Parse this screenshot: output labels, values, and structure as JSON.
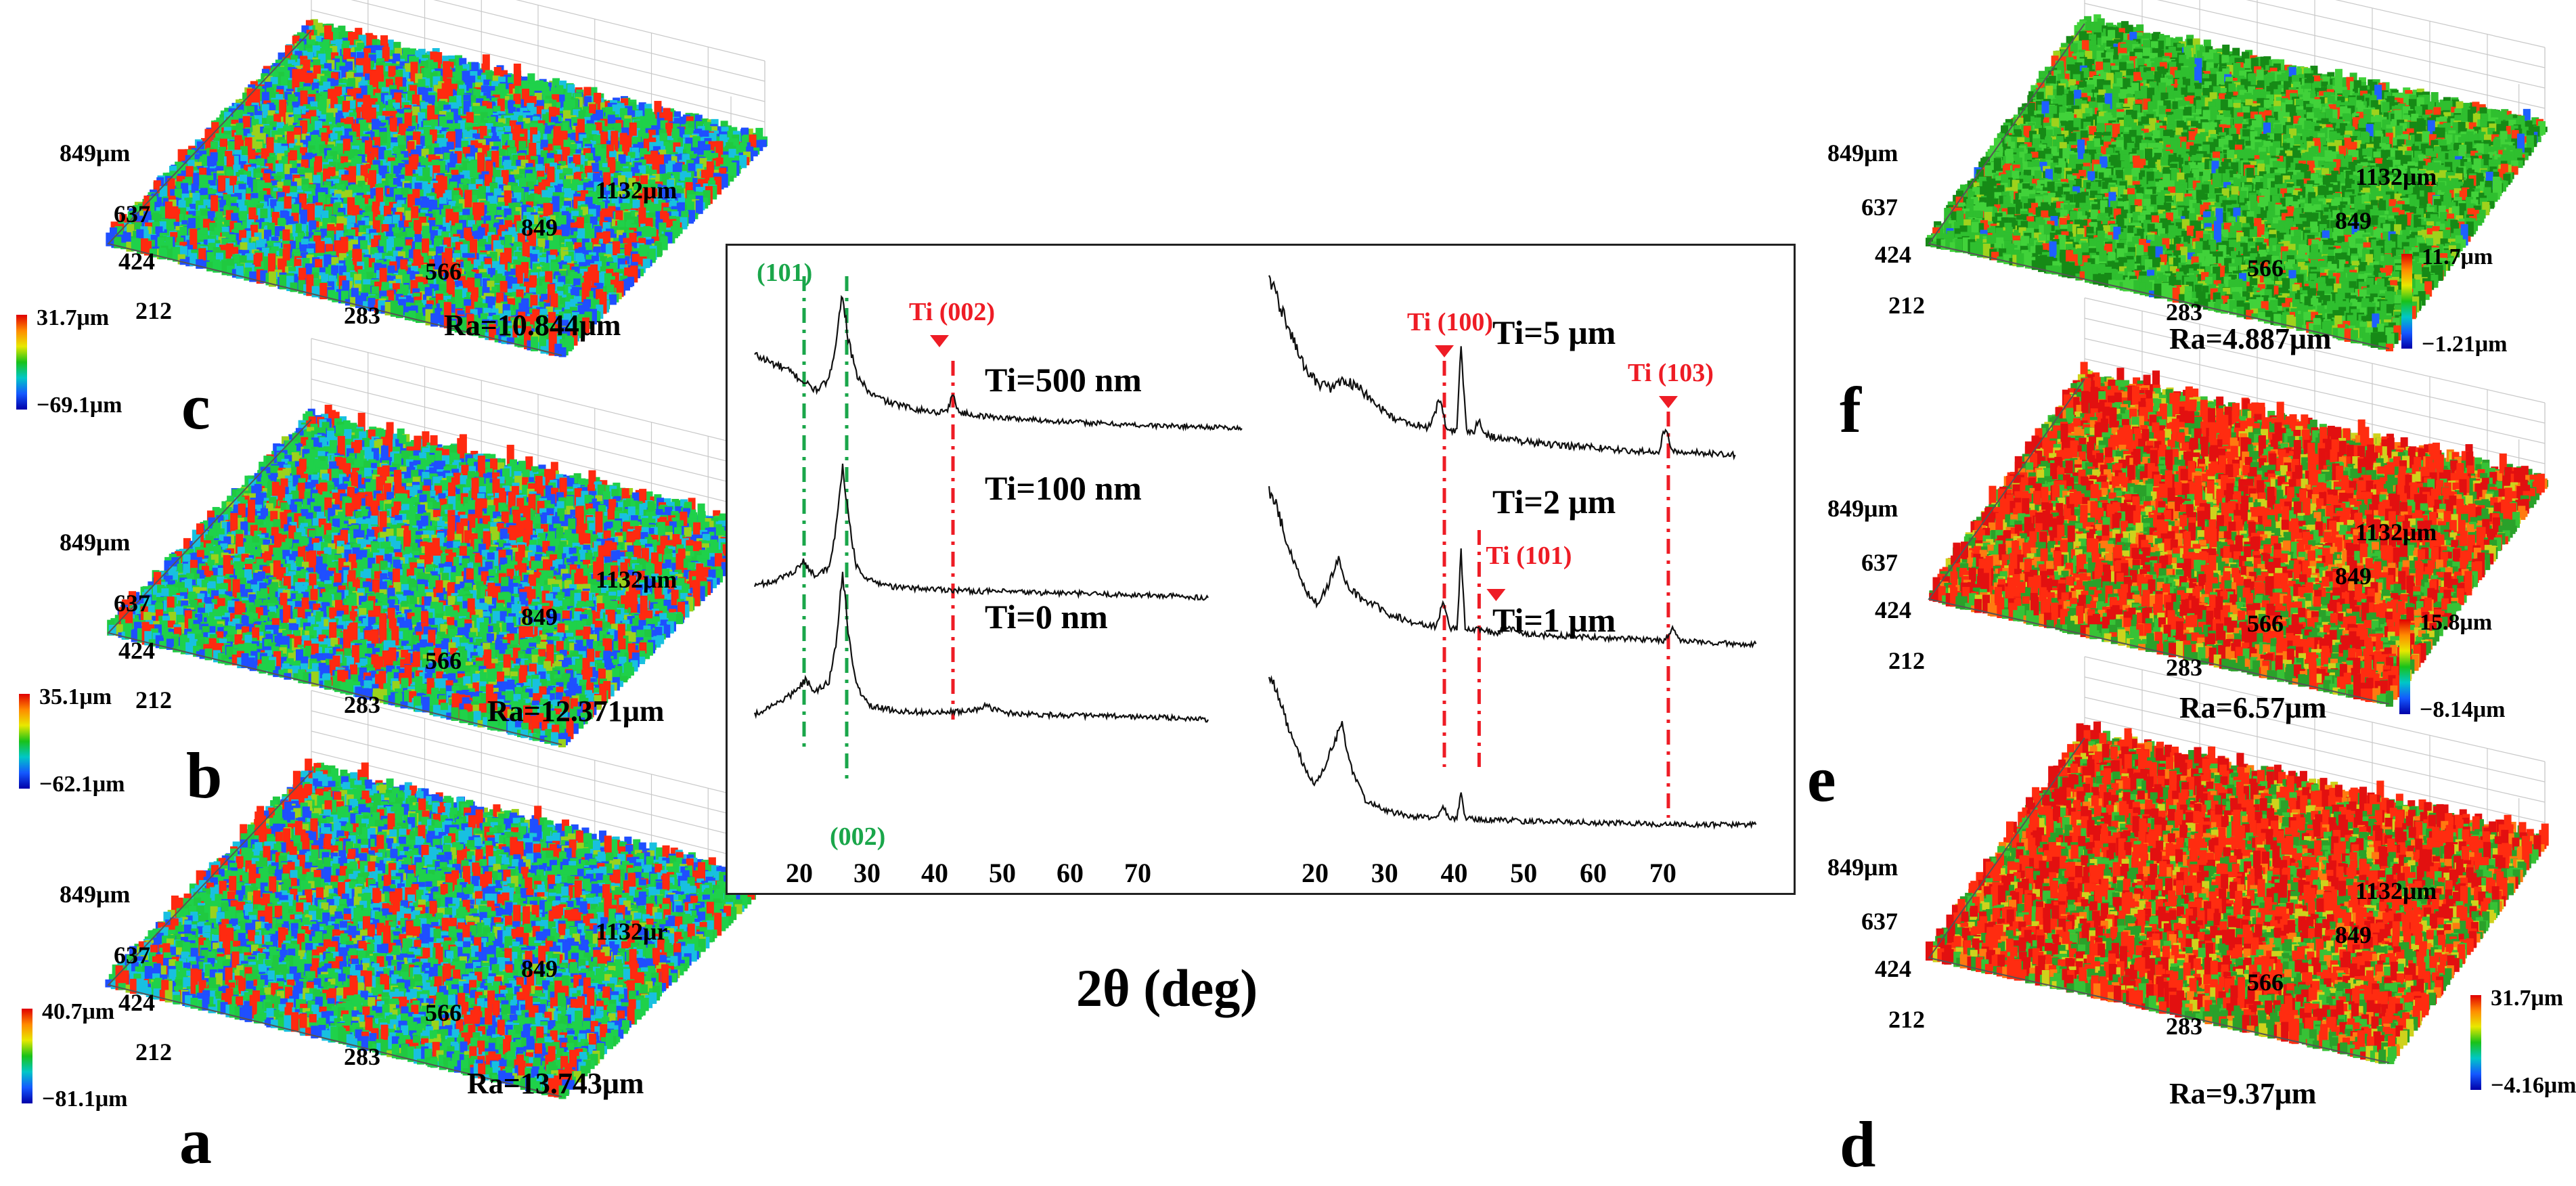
{
  "figure": {
    "xrd_xlabel": "2θ (deg)",
    "xrd_ticks": [
      "20",
      "30",
      "40",
      "50",
      "60",
      "70"
    ]
  },
  "colors": {
    "green": "#1aa64a",
    "red": "#ee1c25",
    "spectrum": [
      "#e00000",
      "#ff8a00",
      "#e8e800",
      "#19c219",
      "#00c7c7",
      "#1458ff",
      "#0000a8"
    ]
  },
  "panels": [
    {
      "id": "a",
      "letter": "a",
      "ra": "Ra=13.743μm",
      "cb_max": "40.7μm",
      "cb_min": "−81.1μm",
      "theme": "blue-green",
      "y_ticks": [
        "849μm",
        "637",
        "424",
        "212"
      ],
      "x_ticks": [
        "283",
        "566",
        "849",
        "1132μr"
      ]
    },
    {
      "id": "b",
      "letter": "b",
      "ra": "Ra=12.371μm",
      "cb_max": "35.1μm",
      "cb_min": "−62.1μm",
      "theme": "blue-green",
      "y_ticks": [
        "849μm",
        "637",
        "424",
        "212"
      ],
      "x_ticks": [
        "283",
        "566",
        "849",
        "1132μm"
      ]
    },
    {
      "id": "c",
      "letter": "c",
      "ra": "Ra=10.844μm",
      "cb_max": "31.7μm",
      "cb_min": "−69.1μm",
      "theme": "blue-green",
      "y_ticks": [
        "849μm",
        "637",
        "424",
        "212"
      ],
      "x_ticks": [
        "283",
        "566",
        "849",
        "1132μm"
      ]
    },
    {
      "id": "d",
      "letter": "d",
      "ra": "Ra=9.37μm",
      "cb_max": "31.7μm",
      "cb_min": "−4.16μm",
      "theme": "red-green",
      "y_ticks": [
        "849μm",
        "637",
        "424",
        "212"
      ],
      "x_ticks": [
        "283",
        "566",
        "849",
        "1132μm"
      ]
    },
    {
      "id": "e",
      "letter": "e",
      "ra": "Ra=6.57μm",
      "cb_max": "15.8μm",
      "cb_min": "−8.14μm",
      "theme": "red-green",
      "y_ticks": [
        "849μm",
        "637",
        "424",
        "212"
      ],
      "x_ticks": [
        "283",
        "566",
        "849",
        "1132μm"
      ]
    },
    {
      "id": "f",
      "letter": "f",
      "ra": "Ra=4.887μm",
      "cb_max": "11.7μm",
      "cb_min": "−1.21μm",
      "theme": "green",
      "y_ticks": [
        "849μm",
        "637",
        "424",
        "212"
      ],
      "x_ticks": [
        "283",
        "566",
        "849",
        "1132μm"
      ]
    }
  ],
  "chart_data": {
    "type": "line",
    "title": "",
    "xlabel": "2θ (deg)",
    "ylabel": "",
    "xlim": [
      13,
      85
    ],
    "x_ticks": [
      20,
      30,
      40,
      50,
      60,
      70
    ],
    "subplots": [
      {
        "name": "left",
        "series": [
          {
            "name": "Ti=500 nm",
            "label": "Ti=500 nm",
            "x": [
              13,
              16,
              18,
              20,
              22,
              24,
              25,
              26,
              26.8,
              28,
              30,
              33,
              37,
              40,
              41.5,
              42.3,
              43.2,
              46,
              52,
              60,
              70,
              80,
              85
            ],
            "y": [
              0.46,
              0.4,
              0.36,
              0.3,
              0.24,
              0.3,
              0.55,
              0.85,
              0.56,
              0.34,
              0.22,
              0.16,
              0.12,
              0.1,
              0.12,
              0.21,
              0.1,
              0.08,
              0.06,
              0.04,
              0.02,
              0.01,
              0.0
            ]
          },
          {
            "name": "Ti=100 nm",
            "label": "Ti=100 nm",
            "x": [
              13,
              16,
              19,
              20.2,
              22,
              24,
              25,
              26,
              26.8,
              28,
              30,
              34,
              40,
              45,
              55,
              65,
              75,
              80
            ],
            "y": [
              0.07,
              0.1,
              0.16,
              0.21,
              0.13,
              0.17,
              0.4,
              0.78,
              0.48,
              0.18,
              0.1,
              0.06,
              0.05,
              0.04,
              0.03,
              0.02,
              0.01,
              0.0
            ]
          },
          {
            "name": "Ti=0 nm",
            "label": "Ti=0 nm",
            "x": [
              13,
              16,
              19,
              20.5,
              22,
              24,
              25,
              26,
              26.8,
              28,
              30,
              34,
              40,
              45,
              47,
              50,
              55,
              65,
              75,
              80
            ],
            "y": [
              0.03,
              0.09,
              0.16,
              0.23,
              0.16,
              0.22,
              0.45,
              0.85,
              0.52,
              0.2,
              0.08,
              0.05,
              0.04,
              0.05,
              0.08,
              0.04,
              0.03,
              0.02,
              0.01,
              0.0
            ]
          }
        ],
        "vlines": [
          {
            "x": 20.3,
            "color": "green",
            "label": "(101)",
            "label_side": "top"
          },
          {
            "x": 26.6,
            "color": "green",
            "label": "(002)",
            "label_side": "bottom"
          },
          {
            "x": 42.3,
            "color": "red",
            "label": "Ti (002)",
            "label_side": "top"
          }
        ]
      },
      {
        "name": "right",
        "series": [
          {
            "name": "Ti=5 μm",
            "label": "Ti=5 μm",
            "x": [
              13,
              14,
              16,
              18,
              20,
              22,
              24,
              26,
              28,
              30,
              32,
              34,
              36,
              37.5,
              38.5,
              40,
              40.6,
              41.4,
              42.5,
              43.1,
              44,
              46,
              50,
              55,
              60,
              65,
              69,
              70,
              71,
              75,
              80
            ],
            "y": [
              1.0,
              0.9,
              0.7,
              0.52,
              0.42,
              0.4,
              0.44,
              0.4,
              0.32,
              0.26,
              0.22,
              0.2,
              0.19,
              0.34,
              0.18,
              0.17,
              0.62,
              0.17,
              0.16,
              0.24,
              0.15,
              0.13,
              0.11,
              0.09,
              0.08,
              0.06,
              0.06,
              0.19,
              0.06,
              0.05,
              0.04
            ]
          },
          {
            "name": "Ti=2 μm",
            "label": "Ti=2 μm",
            "x": [
              13,
              14,
              16,
              18,
              20,
              21.5,
              23,
              24,
              26,
              28,
              30,
              34,
              37,
              38,
              39,
              40,
              40.6,
              41.2,
              42.5,
              44,
              46,
              47,
              50,
              55,
              60,
              65,
              70,
              71,
              72,
              75,
              80,
              83
            ],
            "y": [
              1.0,
              0.92,
              0.62,
              0.4,
              0.3,
              0.42,
              0.58,
              0.42,
              0.34,
              0.3,
              0.24,
              0.18,
              0.16,
              0.3,
              0.15,
              0.14,
              0.62,
              0.14,
              0.14,
              0.13,
              0.12,
              0.15,
              0.11,
              0.1,
              0.09,
              0.08,
              0.07,
              0.16,
              0.07,
              0.06,
              0.05,
              0.05
            ]
          },
          {
            "name": "Ti=1 μm",
            "label": "Ti=1 μm",
            "x": [
              13,
              14,
              16,
              18,
              19.5,
              21,
              22,
              23.5,
              25,
              27,
              30,
              34,
              37,
              38,
              39,
              40,
              40.6,
              41.2,
              44,
              46,
              50,
              55,
              60,
              65,
              70,
              75,
              80,
              83
            ],
            "y": [
              0.92,
              0.85,
              0.58,
              0.38,
              0.26,
              0.36,
              0.5,
              0.62,
              0.34,
              0.16,
              0.1,
              0.07,
              0.06,
              0.13,
              0.06,
              0.06,
              0.22,
              0.06,
              0.05,
              0.05,
              0.04,
              0.04,
              0.03,
              0.03,
              0.02,
              0.02,
              0.02,
              0.02
            ]
          }
        ],
        "vlines": [
          {
            "x": 38.2,
            "color": "red",
            "label": "Ti (100)",
            "label_side": "top"
          },
          {
            "x": 43.2,
            "color": "red",
            "label": "Ti (101)",
            "label_side": "middle"
          },
          {
            "x": 70.4,
            "color": "red",
            "label": "Ti (103)",
            "label_side": "top"
          }
        ]
      }
    ]
  }
}
